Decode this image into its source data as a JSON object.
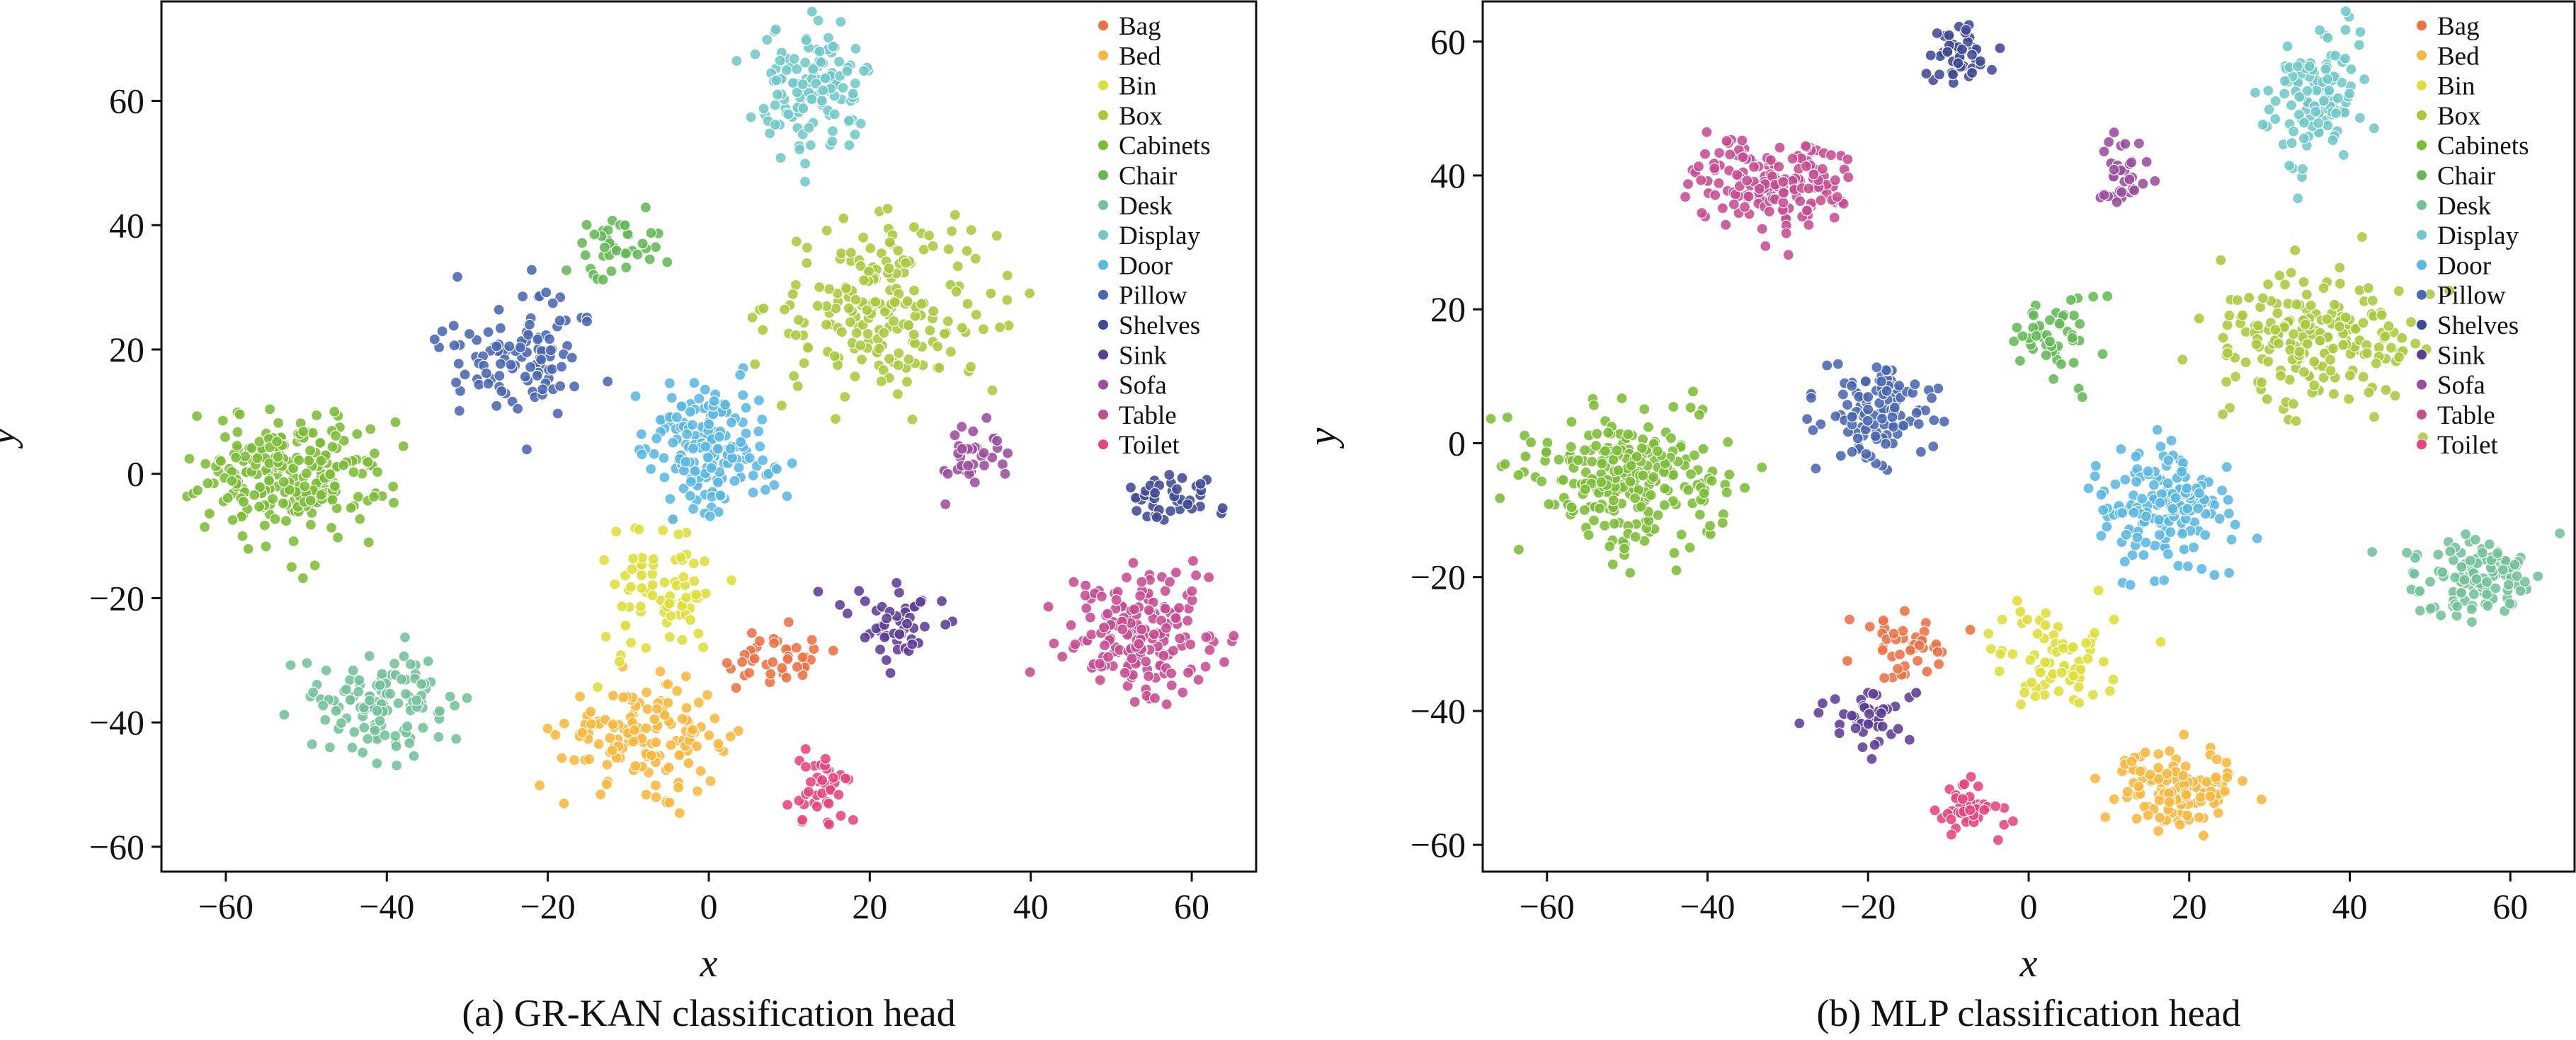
{
  "chart_data": [
    {
      "type": "scatter",
      "caption": "(a) GR-KAN classification head",
      "xlabel": "x",
      "ylabel": "y",
      "xlim": [
        -68,
        68
      ],
      "ylim": [
        -64,
        76
      ],
      "xticks": [
        -60,
        -40,
        -20,
        0,
        20,
        40,
        60
      ],
      "yticks": [
        -60,
        -40,
        -20,
        0,
        20,
        40,
        60
      ],
      "xtick_labels": [
        "−60",
        "−40",
        "−20",
        "0",
        "20",
        "40",
        "60"
      ],
      "ytick_labels": [
        "−60",
        "−40",
        "−20",
        "0",
        "20",
        "40",
        "60"
      ],
      "legend": [
        "Bag",
        "Bed",
        "Bin",
        "Box",
        "Cabinets",
        "Chair",
        "Desk",
        "Display",
        "Door",
        "Pillow",
        "Shelves",
        "Sink",
        "Sofa",
        "Table",
        "Toilet"
      ],
      "legend_position": "top-right",
      "clusters": [
        {
          "class": "Bag",
          "cx": 8,
          "cy": -30,
          "sx": 4,
          "sy": 2.5,
          "n": 40
        },
        {
          "class": "Bed",
          "cx": -8,
          "cy": -42,
          "sx": 5,
          "sy": 4,
          "n": 150
        },
        {
          "class": "Bin",
          "cx": -6,
          "cy": -20,
          "sx": 4,
          "sy": 5,
          "n": 80
        },
        {
          "class": "Box",
          "cx": 22,
          "cy": 27,
          "sx": 7,
          "sy": 7,
          "n": 200
        },
        {
          "class": "Cabinets",
          "cx": -52,
          "cy": 0,
          "sx": 6,
          "sy": 5,
          "n": 250
        },
        {
          "class": "Chair",
          "cx": -11,
          "cy": 37,
          "sx": 3,
          "sy": 3,
          "n": 40
        },
        {
          "class": "Desk",
          "cx": -40,
          "cy": -37,
          "sx": 4,
          "sy": 4,
          "n": 120
        },
        {
          "class": "Display",
          "cx": 13,
          "cy": 62,
          "sx": 3.5,
          "sy": 5,
          "n": 130
        },
        {
          "class": "Door",
          "cx": 0,
          "cy": 4,
          "sx": 4,
          "sy": 5,
          "n": 180
        },
        {
          "class": "Pillow",
          "cx": -24,
          "cy": 20,
          "sx": 5,
          "sy": 5,
          "n": 110
        },
        {
          "class": "Shelves",
          "cx": 58,
          "cy": -4,
          "sx": 3,
          "sy": 2,
          "n": 45
        },
        {
          "class": "Sink",
          "cx": 23,
          "cy": -24,
          "sx": 3.5,
          "sy": 3,
          "n": 50
        },
        {
          "class": "Sofa",
          "cx": 33,
          "cy": 3,
          "sx": 2.5,
          "sy": 3,
          "n": 35
        },
        {
          "class": "Table",
          "cx": 54,
          "cy": -26,
          "sx": 4.5,
          "sy": 5,
          "n": 180
        },
        {
          "class": "Toilet",
          "cx": 14,
          "cy": -51,
          "sx": 2,
          "sy": 3,
          "n": 40
        }
      ]
    },
    {
      "type": "scatter",
      "caption": "(b) MLP classification head",
      "xlabel": "x",
      "ylabel": "y",
      "xlim": [
        -68,
        68
      ],
      "ylim": [
        -64,
        66
      ],
      "xticks": [
        -60,
        -40,
        -20,
        0,
        20,
        40,
        60
      ],
      "yticks": [
        -60,
        -40,
        -20,
        0,
        20,
        40,
        60
      ],
      "xtick_labels": [
        "−60",
        "−40",
        "−20",
        "0",
        "20",
        "40",
        "60"
      ],
      "ytick_labels": [
        "−60",
        "−40",
        "−20",
        "0",
        "20",
        "40",
        "60"
      ],
      "legend": [
        "Bag",
        "Bed",
        "Bin",
        "Box",
        "Cabinets",
        "Chair",
        "Desk",
        "Display",
        "Door",
        "Pillow",
        "Shelves",
        "Sink",
        "Sofa",
        "Table",
        "Toilet"
      ],
      "legend_position": "top-right",
      "clusters": [
        {
          "class": "Bag",
          "cx": -15,
          "cy": -30,
          "sx": 3,
          "sy": 3,
          "n": 45
        },
        {
          "class": "Bed",
          "cx": 18,
          "cy": -51,
          "sx": 4,
          "sy": 3,
          "n": 130
        },
        {
          "class": "Bin",
          "cx": 3,
          "cy": -32,
          "sx": 4,
          "sy": 4,
          "n": 70
        },
        {
          "class": "Box",
          "cx": 36,
          "cy": 15,
          "sx": 6,
          "sy": 5,
          "n": 200
        },
        {
          "class": "Cabinets",
          "cx": -50,
          "cy": -5,
          "sx": 6,
          "sy": 5,
          "n": 260
        },
        {
          "class": "Chair",
          "cx": 3,
          "cy": 15,
          "sx": 3,
          "sy": 3.5,
          "n": 50
        },
        {
          "class": "Desk",
          "cx": 55,
          "cy": -20,
          "sx": 4,
          "sy": 3,
          "n": 120
        },
        {
          "class": "Display",
          "cx": 36,
          "cy": 52,
          "sx": 3,
          "sy": 5,
          "n": 120
        },
        {
          "class": "Door",
          "cx": 17,
          "cy": -10,
          "sx": 4,
          "sy": 4,
          "n": 170
        },
        {
          "class": "Pillow",
          "cx": -19,
          "cy": 5,
          "sx": 3.5,
          "sy": 4,
          "n": 110
        },
        {
          "class": "Shelves",
          "cx": -8,
          "cy": 57,
          "sx": 2,
          "sy": 2.5,
          "n": 45
        },
        {
          "class": "Sink",
          "cx": -20,
          "cy": -42,
          "sx": 2.5,
          "sy": 2.5,
          "n": 45
        },
        {
          "class": "Sofa",
          "cx": 11,
          "cy": 40,
          "sx": 2,
          "sy": 2.5,
          "n": 35
        },
        {
          "class": "Table",
          "cx": -32,
          "cy": 39,
          "sx": 5,
          "sy": 3.5,
          "n": 170
        },
        {
          "class": "Toilet",
          "cx": -7,
          "cy": -55,
          "sx": 2,
          "sy": 2,
          "n": 40
        }
      ]
    }
  ],
  "colors": {
    "Bag": "#ee7143",
    "Bed": "#fab73d",
    "Bin": "#dede38",
    "Box": "#a8c93b",
    "Cabinets": "#7bbd36",
    "Chair": "#64b856",
    "Desk": "#73c29a",
    "Display": "#71c8c8",
    "Door": "#5ab7e2",
    "Pillow": "#4967b2",
    "Shelves": "#3f4a95",
    "Sink": "#5d3e96",
    "Sofa": "#9b4d9e",
    "Table": "#c74c92",
    "Toilet": "#e8437c",
    "axis": "#111111"
  }
}
